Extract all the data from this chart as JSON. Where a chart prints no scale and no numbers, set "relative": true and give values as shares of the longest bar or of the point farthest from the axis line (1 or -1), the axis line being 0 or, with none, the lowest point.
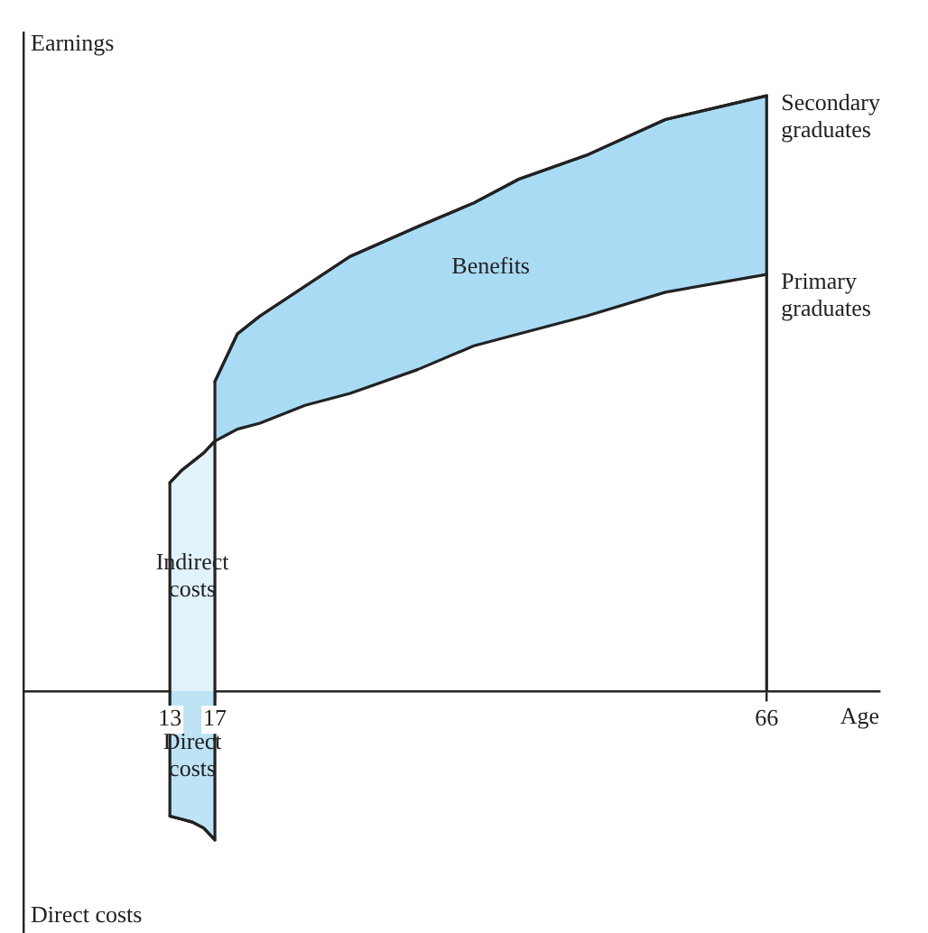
{
  "chart_data": {
    "type": "line",
    "xlabel": "Age",
    "ylabel": "Earnings",
    "relative": true,
    "xlim": [
      0,
      76
    ],
    "xticks": [
      13,
      17,
      66
    ],
    "annotations": [
      "Direct costs"
    ],
    "series": [
      {
        "type": "area",
        "name": "Benefits",
        "color": "#a9dcf4",
        "x": [
          17,
          18,
          19,
          21,
          25,
          29,
          35,
          40,
          44,
          50,
          57,
          66
        ],
        "values": [
          0.52,
          0.56,
          0.6,
          0.63,
          0.68,
          0.73,
          0.78,
          0.82,
          0.86,
          0.9,
          0.96,
          1
        ]
      },
      {
        "type": "area",
        "name": "Indirect costs",
        "color": "#e1f2fb",
        "x": [
          13,
          13,
          14,
          16,
          17
        ],
        "values": [
          0,
          0.35,
          0.37,
          0.4,
          0.42
        ]
      },
      {
        "type": "area",
        "name": "Direct costs",
        "color": "#bde3f5",
        "x": [
          13,
          14,
          15,
          16,
          17
        ],
        "values": [
          -0.21,
          -0.215,
          -0.22,
          -0.23,
          -0.25
        ]
      },
      {
        "name": "Secondary graduates",
        "color": "#222222",
        "x": [
          13,
          13,
          14,
          15,
          16,
          17,
          17,
          18,
          19,
          21,
          25,
          29,
          35,
          40,
          44,
          50,
          57,
          66,
          66
        ],
        "values": [
          0,
          -0.21,
          -0.215,
          -0.22,
          -0.23,
          -0.25,
          0.52,
          0.56,
          0.6,
          0.63,
          0.68,
          0.73,
          0.78,
          0.82,
          0.86,
          0.9,
          0.96,
          1,
          0
        ]
      },
      {
        "name": "Primary graduates",
        "color": "#222222",
        "x": [
          13,
          14,
          16,
          17,
          18,
          19,
          21,
          25,
          29,
          35,
          40,
          44,
          50,
          57,
          66
        ],
        "values": [
          0.35,
          0.37,
          0.4,
          0.42,
          0.43,
          0.44,
          0.45,
          0.48,
          0.5,
          0.54,
          0.58,
          0.6,
          0.63,
          0.67,
          0.7
        ]
      }
    ]
  }
}
